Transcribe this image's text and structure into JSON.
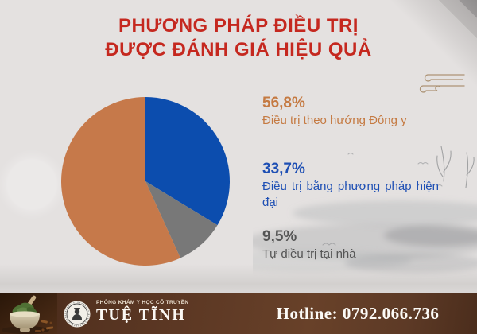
{
  "page": {
    "background_color": "#e4e1e0",
    "accent_red": "#c5281f"
  },
  "title": {
    "line1": "PHƯƠNG PHÁP ĐIỀU TRỊ",
    "line2": "ĐƯỢC ĐÁNH GIÁ HIỆU QUẢ"
  },
  "chart_data": {
    "type": "pie",
    "title": "Phương pháp điều trị được đánh giá hiệu quả",
    "slices": [
      {
        "label": "Điều trị theo hướng Đông y",
        "value": 56.8,
        "display": "56,8%",
        "color": "#c6794a",
        "text_color": "#c57a42"
      },
      {
        "label": "Điều trị bằng phương pháp hiện đại",
        "value": 33.7,
        "display": "33,7%",
        "color": "#0c4dae",
        "text_color": "#1e4fb4"
      },
      {
        "label": "Tự điều trị tại nhà",
        "value": 9.5,
        "display": "9,5%",
        "color": "#787878",
        "text_color": "#555555"
      }
    ],
    "draw_order": [
      1,
      2,
      0
    ],
    "start_angle_deg": 0,
    "direction": "clockwise",
    "legend_position": "right",
    "grid": false
  },
  "footer": {
    "clinic_type": "PHÒNG KHÁM Y HỌC CỔ TRUYỀN",
    "clinic_name": "TUỆ TĨNH",
    "hotline": "Hotline: 0792.066.736",
    "background_color": "#5c3824"
  },
  "decor": {
    "icons": [
      "cloud-motif-icon",
      "ink-wash-decoration",
      "mortar-pestle-photo",
      "tue-tinh-logo"
    ]
  }
}
